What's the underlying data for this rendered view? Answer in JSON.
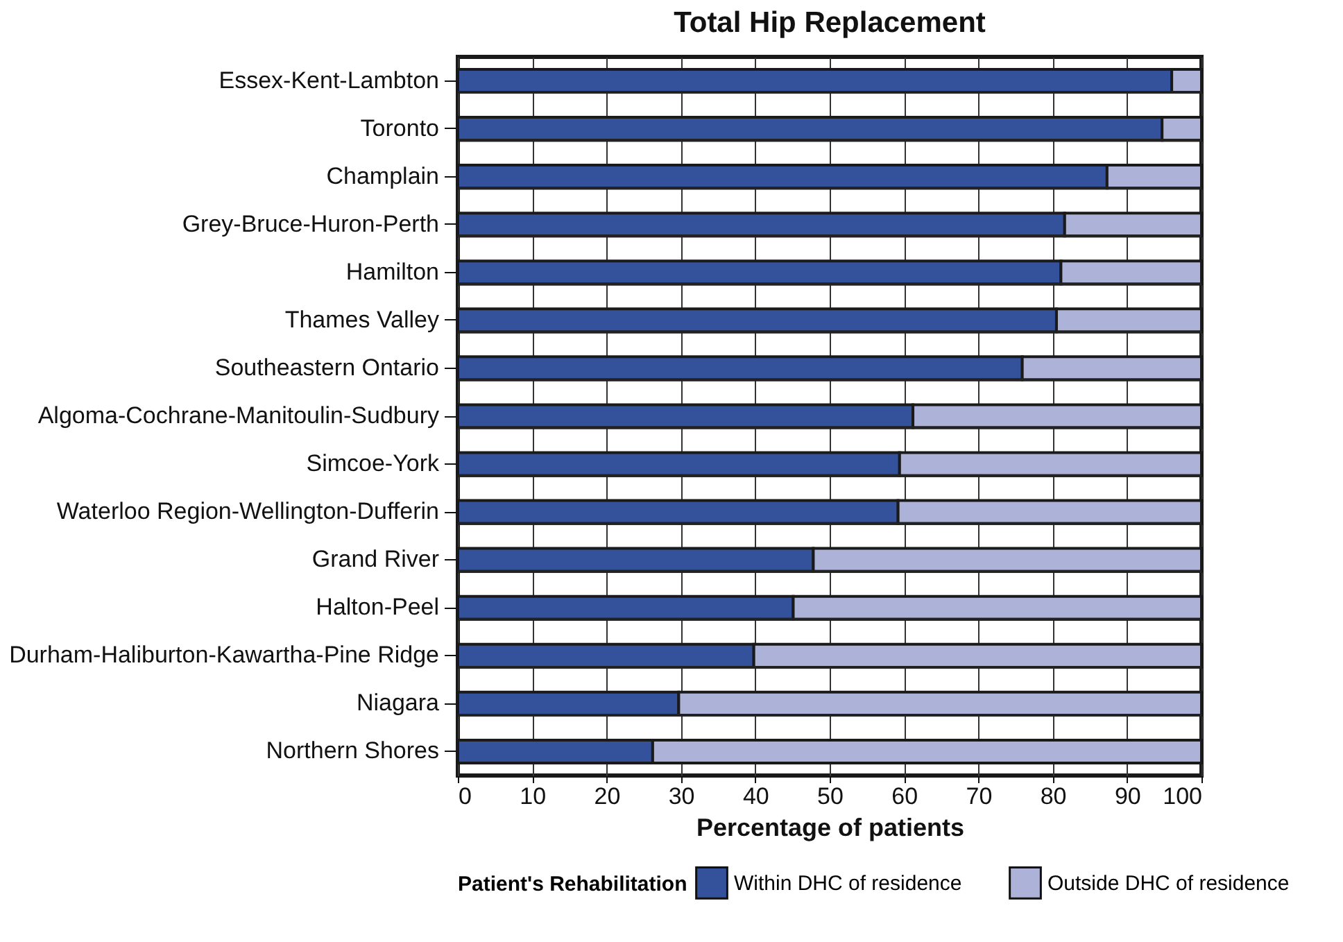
{
  "chart_data": {
    "type": "bar",
    "orientation": "horizontal",
    "stacked": true,
    "title": "Total Hip Replacement",
    "xlabel": "Percentage of patients",
    "legend_title": "Patient's Rehabilitation",
    "categories": [
      "Essex-Kent-Lambton",
      "Toronto",
      "Champlain",
      "Grey-Bruce-Huron-Perth",
      "Hamilton",
      "Thames Valley",
      "Southeastern Ontario",
      "Algoma-Cochrane-Manitoulin-Sudbury",
      "Simcoe-York",
      "Waterloo Region-Wellington-Dufferin",
      "Grand River",
      "Halton-Peel",
      "Durham-Haliburton-Kawartha-Pine Ridge",
      "Niagara",
      "Northern Shores"
    ],
    "series": [
      {
        "name": "Within DHC of residence",
        "color": "#34519c",
        "values": [
          96.0,
          94.7,
          87.3,
          81.6,
          81.1,
          80.5,
          75.9,
          61.2,
          59.4,
          59.2,
          47.8,
          45.1,
          39.8,
          29.7,
          26.2
        ]
      },
      {
        "name": "Outside DHC of residence",
        "color": "#adb3d8",
        "values": [
          4.0,
          5.3,
          12.7,
          18.4,
          18.9,
          19.5,
          24.1,
          38.8,
          40.6,
          40.8,
          52.2,
          54.9,
          60.2,
          70.3,
          73.8
        ]
      }
    ],
    "xlim": [
      0,
      100
    ],
    "xticks": [
      0,
      10,
      20,
      30,
      40,
      50,
      60,
      70,
      80,
      90,
      100
    ],
    "grid": true,
    "legend": "bottom"
  }
}
